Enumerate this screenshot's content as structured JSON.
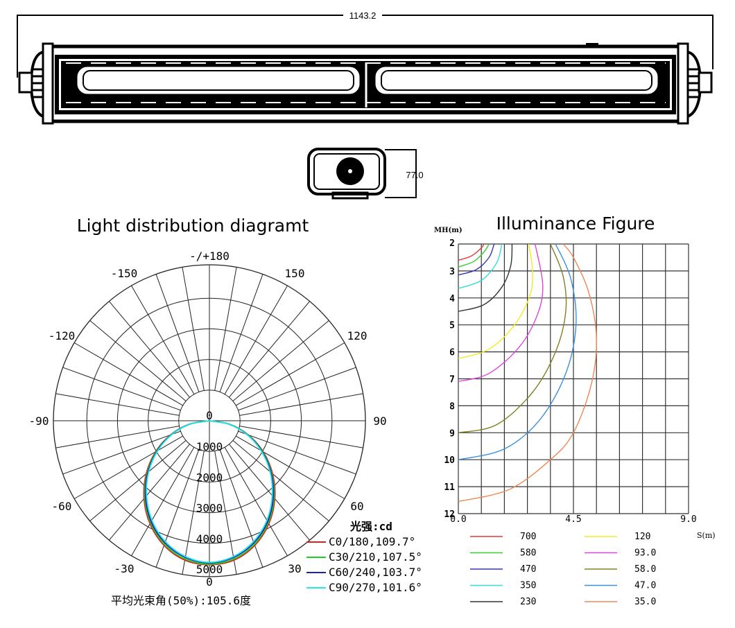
{
  "drawing": {
    "length_dimension": "1143.2",
    "height_dimension": "77.0"
  },
  "chart_data": [
    {
      "type": "polar",
      "title": "Light distribution diagramt",
      "angle_labels": [
        "-/+180",
        "150",
        "120",
        "90",
        "60",
        "30",
        "0",
        "-30",
        "-60",
        "-90",
        "-120",
        "-150"
      ],
      "angle_values": [
        180,
        150,
        120,
        90,
        60,
        30,
        0,
        -30,
        -60,
        -90,
        -120,
        -150
      ],
      "radial_labels": [
        "0",
        "1000",
        "2000",
        "3000",
        "4000",
        "5000"
      ],
      "radial_range": [
        0,
        5000
      ],
      "grid": true,
      "unit_label": "光强:cd",
      "angles": [
        0,
        10,
        20,
        30,
        40,
        50,
        60,
        70,
        80,
        90
      ],
      "series": [
        {
          "name": "C0/180,109.7°",
          "color": "#e02020",
          "values": [
            4700,
            4620,
            4330,
            3880,
            3320,
            2690,
            2030,
            1350,
            680,
            0
          ]
        },
        {
          "name": "C30/210,107.5°",
          "color": "#20d020",
          "values": [
            4680,
            4580,
            4290,
            3840,
            3280,
            2650,
            2000,
            1330,
            670,
            0
          ]
        },
        {
          "name": "C60/240,103.7°",
          "color": "#2020b0",
          "values": [
            4640,
            4530,
            4240,
            3800,
            3240,
            2620,
            1970,
            1310,
            650,
            0
          ]
        },
        {
          "name": "C90/270,101.6°",
          "color": "#20e8e8",
          "values": [
            4620,
            4500,
            4200,
            3750,
            3190,
            2580,
            1940,
            1290,
            640,
            0
          ]
        }
      ],
      "footer": "平均光束角(50%):105.6度"
    },
    {
      "type": "line",
      "title": "Illuminance Figure",
      "ylabel": "MH(m)",
      "xlabel": "S(m)",
      "xlim": [
        0,
        9
      ],
      "ylim": [
        2,
        12
      ],
      "x_ticks": [
        "0.0",
        "4.5",
        "9.0"
      ],
      "y_ticks": [
        "2",
        "3",
        "4",
        "5",
        "6",
        "7",
        "8",
        "9",
        "10",
        "11",
        "12"
      ],
      "grid": true,
      "legend_position": "bottom",
      "series": [
        {
          "name": "700",
          "color": "#e03a3a",
          "points": [
            [
              0,
              2.6
            ],
            [
              0.5,
              2.45
            ],
            [
              0.9,
              2.15
            ],
            [
              1.0,
              2
            ]
          ]
        },
        {
          "name": "580",
          "color": "#33cc33",
          "points": [
            [
              0,
              2.85
            ],
            [
              0.6,
              2.65
            ],
            [
              1.0,
              2.3
            ],
            [
              1.2,
              2
            ]
          ]
        },
        {
          "name": "470",
          "color": "#3333bb",
          "points": [
            [
              0,
              3.15
            ],
            [
              0.7,
              2.95
            ],
            [
              1.2,
              2.5
            ],
            [
              1.4,
              2
            ]
          ]
        },
        {
          "name": "350",
          "color": "#33dddd",
          "points": [
            [
              0,
              3.65
            ],
            [
              0.9,
              3.35
            ],
            [
              1.5,
              2.7
            ],
            [
              1.7,
              2
            ]
          ]
        },
        {
          "name": "230",
          "color": "#333333",
          "points": [
            [
              0,
              4.5
            ],
            [
              1.0,
              4.25
            ],
            [
              1.7,
              3.6
            ],
            [
              2.05,
              2.8
            ],
            [
              2.1,
              2
            ]
          ]
        },
        {
          "name": "120",
          "color": "#eeee22",
          "points": [
            [
              0,
              6.25
            ],
            [
              1.2,
              5.9
            ],
            [
              2.2,
              5.0
            ],
            [
              2.8,
              3.9
            ],
            [
              2.9,
              3.0
            ],
            [
              2.75,
              2
            ]
          ]
        },
        {
          "name": "93.0",
          "color": "#dd44dd",
          "points": [
            [
              0,
              7.1
            ],
            [
              1.2,
              6.8
            ],
            [
              2.4,
              5.8
            ],
            [
              3.1,
              4.6
            ],
            [
              3.3,
              3.5
            ],
            [
              3.0,
              2
            ]
          ]
        },
        {
          "name": "58.0",
          "color": "#808022",
          "points": [
            [
              0,
              9.0
            ],
            [
              1.5,
              8.7
            ],
            [
              2.9,
              7.5
            ],
            [
              3.8,
              6.0
            ],
            [
              4.2,
              4.5
            ],
            [
              4.1,
              3.2
            ],
            [
              3.6,
              2
            ]
          ]
        },
        {
          "name": "47.0",
          "color": "#3a90dd",
          "points": [
            [
              0,
              10.0
            ],
            [
              1.8,
              9.6
            ],
            [
              3.2,
              8.5
            ],
            [
              4.2,
              6.8
            ],
            [
              4.6,
              5.0
            ],
            [
              4.4,
              3.3
            ],
            [
              3.8,
              2
            ]
          ]
        },
        {
          "name": "35.0",
          "color": "#ee8855",
          "points": [
            [
              0,
              11.55
            ],
            [
              2.0,
              11.1
            ],
            [
              3.6,
              10.0
            ],
            [
              4.5,
              9.0
            ],
            [
              5.2,
              7.2
            ],
            [
              5.4,
              5.5
            ],
            [
              5.1,
              3.8
            ],
            [
              4.5,
              2.5
            ],
            [
              4.1,
              2
            ]
          ]
        }
      ]
    }
  ]
}
